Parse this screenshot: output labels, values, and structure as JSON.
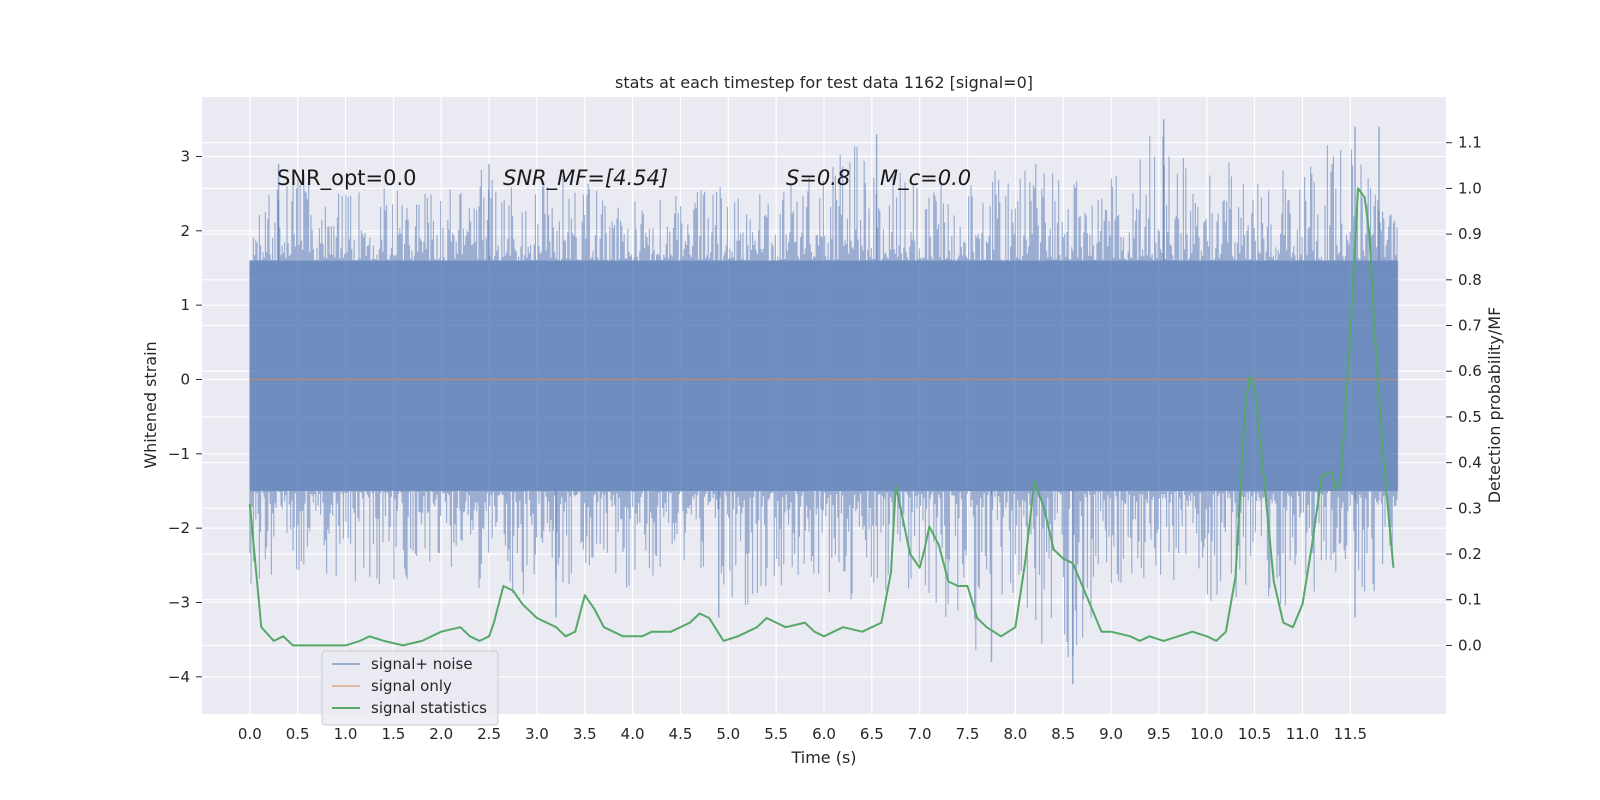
{
  "chart_data": {
    "type": "line",
    "title": "stats at each timestep for test data 1162 [signal=0]",
    "xlabel": "Time (s)",
    "ylabel": "Whitened strain",
    "y2label": "Detection probability/MF",
    "xlim": [
      -0.5,
      12.5
    ],
    "ylim": [
      -4.5,
      3.8
    ],
    "y2lim": [
      -0.15,
      1.2
    ],
    "xticks": [
      0.0,
      0.5,
      1.0,
      1.5,
      2.0,
      2.5,
      3.0,
      3.5,
      4.0,
      4.5,
      5.0,
      5.5,
      6.0,
      6.5,
      7.0,
      7.5,
      8.0,
      8.5,
      9.0,
      9.5,
      10.0,
      10.5,
      11.0,
      11.5
    ],
    "xtick_labels": [
      "0.0",
      "0.5",
      "1.0",
      "1.5",
      "2.0",
      "2.5",
      "3.0",
      "3.5",
      "4.0",
      "4.5",
      "5.0",
      "5.5",
      "6.0",
      "6.5",
      "7.0",
      "7.5",
      "8.0",
      "8.5",
      "9.0",
      "9.5",
      "10.0",
      "10.5",
      "11.0",
      "11.5"
    ],
    "yticks": [
      -4,
      -3,
      -2,
      -1,
      0,
      1,
      2,
      3
    ],
    "ytick_labels": [
      "−4",
      "−3",
      "−2",
      "−1",
      "0",
      "1",
      "2",
      "3"
    ],
    "y2ticks": [
      0.0,
      0.1,
      0.2,
      0.3,
      0.4,
      0.5,
      0.6,
      0.7,
      0.8,
      0.9,
      1.0,
      1.1
    ],
    "y2tick_labels": [
      "0.0",
      "0.1",
      "0.2",
      "0.3",
      "0.4",
      "0.5",
      "0.6",
      "0.7",
      "0.8",
      "0.9",
      "1.0",
      "1.1"
    ],
    "grid": true,
    "legend_position": "lower-left",
    "annotations": [
      {
        "text": "SNR_opt=0.0",
        "x": 0.2
      },
      {
        "text": "SNR_MF=[4.54]",
        "x": 2.6
      },
      {
        "text": "S=0.8",
        "x": 5.6
      },
      {
        "text": "M_c=0.0",
        "x": 6.6
      }
    ],
    "annotation_y": 2.7,
    "series": [
      {
        "name": "signal+ noise",
        "color": "#4c72b0",
        "axis": "left",
        "x_range": [
          0.0,
          12.0
        ],
        "baseline_band": [
          -1.5,
          1.6
        ],
        "envelope_x": [
          0.0,
          0.5,
          1.0,
          1.5,
          2.0,
          2.5,
          3.0,
          3.5,
          4.0,
          4.5,
          5.0,
          5.5,
          6.0,
          6.5,
          7.0,
          7.5,
          8.0,
          8.5,
          9.0,
          9.5,
          10.0,
          10.5,
          11.0,
          11.5,
          12.0
        ],
        "envelope_max": [
          2.3,
          2.9,
          2.5,
          2.6,
          2.5,
          2.9,
          2.8,
          2.7,
          2.6,
          2.5,
          2.8,
          2.7,
          2.9,
          3.3,
          2.6,
          2.7,
          2.9,
          2.9,
          2.7,
          3.5,
          2.9,
          3.0,
          2.9,
          3.4,
          2.2
        ],
        "envelope_min": [
          -2.9,
          -2.6,
          -2.7,
          -2.8,
          -2.6,
          -2.9,
          -3.0,
          -2.8,
          -2.9,
          -2.6,
          -3.2,
          -2.8,
          -2.9,
          -3.1,
          -2.8,
          -3.8,
          -3.0,
          -4.1,
          -2.9,
          -2.8,
          -3.0,
          -2.9,
          -3.2,
          -3.0,
          -2.7
        ],
        "spikes_up": [
          [
            0.3,
            2.9
          ],
          [
            2.5,
            2.9
          ],
          [
            6.55,
            3.3
          ],
          [
            9.55,
            3.5
          ],
          [
            11.55,
            3.4
          ],
          [
            11.8,
            3.4
          ]
        ],
        "spikes_down": [
          [
            3.2,
            -3.2
          ],
          [
            4.9,
            -3.2
          ],
          [
            7.75,
            -3.8
          ],
          [
            8.6,
            -4.1
          ],
          [
            11.55,
            -3.2
          ]
        ]
      },
      {
        "name": "signal only",
        "color": "#dd8452",
        "axis": "left",
        "x": [
          0.0,
          12.0
        ],
        "y": [
          0.0,
          0.0
        ]
      },
      {
        "name": "signal statistics",
        "color": "#55a868",
        "axis": "right",
        "x": [
          0.0,
          0.12,
          0.25,
          0.35,
          0.45,
          0.55,
          0.65,
          0.75,
          1.0,
          1.15,
          1.25,
          1.4,
          1.6,
          1.8,
          2.0,
          2.2,
          2.3,
          2.4,
          2.5,
          2.55,
          2.65,
          2.75,
          2.85,
          3.0,
          3.2,
          3.3,
          3.4,
          3.5,
          3.6,
          3.7,
          3.9,
          4.1,
          4.2,
          4.4,
          4.6,
          4.7,
          4.8,
          4.95,
          5.1,
          5.3,
          5.4,
          5.5,
          5.6,
          5.8,
          5.9,
          6.0,
          6.2,
          6.4,
          6.6,
          6.7,
          6.75,
          6.8,
          6.9,
          7.0,
          7.05,
          7.1,
          7.2,
          7.3,
          7.4,
          7.5,
          7.6,
          7.7,
          7.85,
          8.0,
          8.1,
          8.2,
          8.3,
          8.4,
          8.5,
          8.6,
          8.7,
          8.8,
          8.9,
          9.0,
          9.2,
          9.3,
          9.4,
          9.55,
          9.7,
          9.85,
          10.0,
          10.1,
          10.2,
          10.3,
          10.4,
          10.45,
          10.5,
          10.6,
          10.7,
          10.8,
          10.9,
          11.0,
          11.1,
          11.2,
          11.3,
          11.35,
          11.4,
          11.5,
          11.58,
          11.65,
          11.7,
          11.75,
          11.85,
          11.95
        ],
        "y": [
          0.31,
          0.04,
          0.01,
          0.02,
          0.0,
          0.0,
          0.0,
          0.0,
          0.0,
          0.01,
          0.02,
          0.01,
          0.0,
          0.01,
          0.03,
          0.04,
          0.02,
          0.01,
          0.02,
          0.05,
          0.13,
          0.12,
          0.09,
          0.06,
          0.04,
          0.02,
          0.03,
          0.11,
          0.08,
          0.04,
          0.02,
          0.02,
          0.03,
          0.03,
          0.05,
          0.07,
          0.06,
          0.01,
          0.02,
          0.04,
          0.06,
          0.05,
          0.04,
          0.05,
          0.03,
          0.02,
          0.04,
          0.03,
          0.05,
          0.16,
          0.35,
          0.3,
          0.2,
          0.17,
          0.21,
          0.26,
          0.22,
          0.14,
          0.13,
          0.13,
          0.06,
          0.04,
          0.02,
          0.04,
          0.18,
          0.36,
          0.3,
          0.21,
          0.19,
          0.18,
          0.13,
          0.08,
          0.03,
          0.03,
          0.02,
          0.01,
          0.02,
          0.01,
          0.02,
          0.03,
          0.02,
          0.01,
          0.03,
          0.15,
          0.52,
          0.59,
          0.56,
          0.36,
          0.14,
          0.05,
          0.04,
          0.09,
          0.22,
          0.37,
          0.38,
          0.34,
          0.36,
          0.68,
          1.0,
          0.98,
          0.9,
          0.7,
          0.4,
          0.17
        ]
      }
    ]
  },
  "colors": {
    "plot_background": "#eaeaf2",
    "grid": "#ffffff",
    "noise": "#4c72b0",
    "signal": "#dd8452",
    "statistics": "#55a868"
  }
}
